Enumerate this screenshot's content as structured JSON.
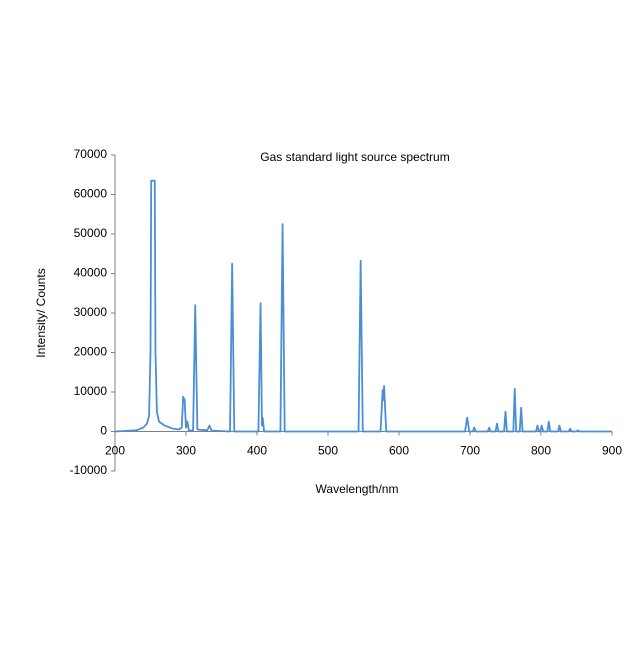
{
  "chart_data": {
    "type": "line",
    "title": "Gas standard light source spectrum",
    "x_label": "Wavelength/nm",
    "y_label": "Intensity/ Counts",
    "x": [
      200,
      230,
      240,
      245,
      248,
      250,
      251,
      256,
      257,
      259,
      262,
      270,
      280,
      290,
      294,
      296,
      298,
      300,
      302,
      304,
      310,
      313,
      316,
      330,
      333,
      336,
      362,
      365,
      368,
      402,
      405,
      407,
      408,
      410,
      433,
      436,
      439,
      543,
      546,
      549,
      574,
      577,
      578,
      579,
      582,
      693,
      696,
      699,
      704,
      706,
      708,
      725,
      727,
      729,
      736,
      738,
      740,
      748,
      750,
      752,
      761,
      763,
      765,
      770,
      772,
      774,
      793,
      795,
      797,
      799,
      801,
      803,
      809,
      811,
      813,
      824,
      826,
      828,
      839,
      841,
      843,
      850,
      852,
      854,
      900
    ],
    "series": [
      {
        "name": "Intensity",
        "color": "#4a8fd4",
        "values": [
          0,
          300,
          1000,
          2000,
          4000,
          20000,
          63500,
          63500,
          20000,
          5000,
          2500,
          1500,
          800,
          500,
          1000,
          8800,
          8000,
          1000,
          2500,
          200,
          300,
          32000,
          500,
          300,
          1500,
          200,
          0,
          42500,
          0,
          0,
          32500,
          1500,
          3500,
          0,
          0,
          52500,
          0,
          0,
          43200,
          0,
          0,
          10500,
          8000,
          11500,
          0,
          0,
          3500,
          0,
          0,
          1000,
          0,
          0,
          1000,
          0,
          0,
          2000,
          0,
          0,
          5000,
          0,
          0,
          10800,
          0,
          0,
          6000,
          0,
          0,
          1500,
          0,
          0,
          1500,
          0,
          0,
          2500,
          0,
          0,
          1500,
          0,
          0,
          700,
          0,
          0,
          300,
          0,
          0
        ]
      }
    ],
    "xlim": [
      200,
      900
    ],
    "ylim": [
      -10000,
      70000
    ],
    "xticks": [
      200,
      300,
      400,
      500,
      600,
      700,
      800,
      900
    ],
    "yticks": [
      -10000,
      0,
      10000,
      20000,
      30000,
      40000,
      50000,
      60000,
      70000
    ],
    "grid": false
  }
}
